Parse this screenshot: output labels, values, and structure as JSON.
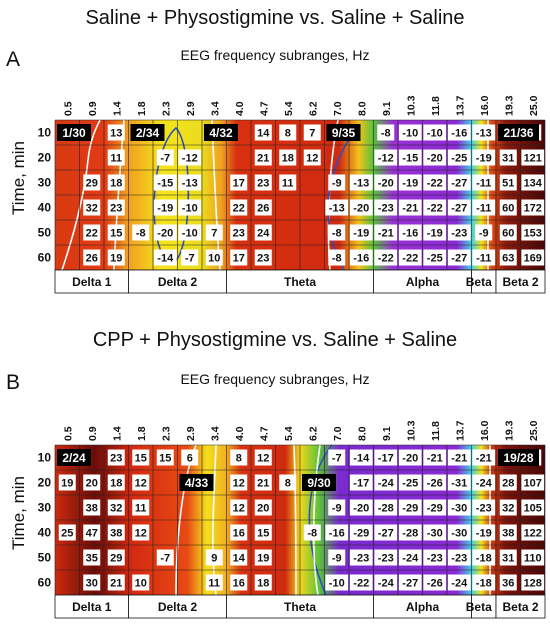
{
  "chart_data": [
    {
      "type": "heatmap",
      "panel_letter": "A",
      "title": "Saline + Physostigmine vs. Saline + Saline",
      "subtitle": "EEG frequency subranges, Hz",
      "ylabel": "Time, min",
      "x": [
        "0.5",
        "0.9",
        "1.4",
        "1.8",
        "2.3",
        "2.9",
        "3.4",
        "4.0",
        "4.7",
        "5.4",
        "6.2",
        "7.0",
        "8.0",
        "9.1",
        "10.3",
        "11.8",
        "13.7",
        "16.0",
        "19.3",
        "25.0"
      ],
      "y": [
        "10",
        "20",
        "30",
        "40",
        "50",
        "60"
      ],
      "bands": [
        {
          "label": "Delta 1",
          "from": 0,
          "to": 3
        },
        {
          "label": "Delta 2",
          "from": 3,
          "to": 7
        },
        {
          "label": "Theta",
          "from": 7,
          "to": 13
        },
        {
          "label": "Alpha",
          "from": 13,
          "to": 17
        },
        {
          "label": "Beta 1",
          "from": 17,
          "to": 18
        },
        {
          "label": "Beta 2",
          "from": 18,
          "to": 20
        }
      ],
      "values": [
        [
          "",
          "",
          "13",
          "",
          "",
          "",
          "",
          "",
          "14",
          "8",
          "7",
          "",
          "",
          "-8",
          "-10",
          "-10",
          "-16",
          "-13",
          "13",
          "44"
        ],
        [
          "",
          "",
          "11",
          "",
          "-7",
          "-12",
          "",
          "",
          "21",
          "18",
          "12",
          "",
          "",
          "-12",
          "-15",
          "-20",
          "-25",
          "-19",
          "31",
          "121"
        ],
        [
          "",
          "29",
          "18",
          "",
          "-15",
          "-13",
          "",
          "17",
          "23",
          "11",
          "",
          "-9",
          "-13",
          "-20",
          "-19",
          "-22",
          "-27",
          "-11",
          "51",
          "134"
        ],
        [
          "",
          "32",
          "23",
          "",
          "-19",
          "-10",
          "",
          "22",
          "26",
          "",
          "",
          "-13",
          "-20",
          "-23",
          "-21",
          "-22",
          "-27",
          "-11",
          "60",
          "172"
        ],
        [
          "",
          "22",
          "15",
          "-8",
          "-20",
          "-10",
          "7",
          "23",
          "24",
          "",
          "",
          "-8",
          "-19",
          "-21",
          "-16",
          "-19",
          "-23",
          "-9",
          "60",
          "153"
        ],
        [
          "",
          "26",
          "19",
          "",
          "-14",
          "-7",
          "10",
          "17",
          "23",
          "",
          "",
          "-8",
          "-16",
          "-22",
          "-22",
          "-25",
          "-27",
          "-11",
          "63",
          "169"
        ]
      ],
      "counts": [
        {
          "text": "1/30",
          "row": 0,
          "col": 0
        },
        {
          "text": "2/34",
          "row": 0,
          "col": 3
        },
        {
          "text": "4/32",
          "row": 0,
          "col": 6
        },
        {
          "text": "9/35",
          "row": 0,
          "col": 11
        },
        {
          "text": "21/36",
          "row": 0,
          "col": 18
        }
      ],
      "colors": {
        "hot": "#5a0a0a",
        "red": "#d42a10",
        "orange": "#f28a18",
        "yellow": "#f2e21a",
        "green": "#4fbf3a",
        "cyan": "#44d8e8",
        "blue": "#3a5bd6",
        "violet": "#7a2ad0",
        "purple": "#9b2fd8"
      }
    },
    {
      "type": "heatmap",
      "panel_letter": "B",
      "title": "CPP + Physostigmine vs. Saline + Saline",
      "subtitle": "EEG frequency subranges, Hz",
      "ylabel": "Time, min",
      "x": [
        "0.5",
        "0.9",
        "1.4",
        "1.8",
        "2.3",
        "2.9",
        "3.4",
        "4.0",
        "4.7",
        "5.4",
        "6.2",
        "7.0",
        "8.0",
        "9.1",
        "10.3",
        "11.8",
        "13.7",
        "16.0",
        "19.3",
        "25.0"
      ],
      "y": [
        "10",
        "20",
        "30",
        "40",
        "50",
        "60"
      ],
      "bands": [
        {
          "label": "Delta 1",
          "from": 0,
          "to": 3
        },
        {
          "label": "Delta 2",
          "from": 3,
          "to": 7
        },
        {
          "label": "Theta",
          "from": 7,
          "to": 13
        },
        {
          "label": "Alpha",
          "from": 13,
          "to": 17
        },
        {
          "label": "Beta 1",
          "from": 17,
          "to": 18
        },
        {
          "label": "Beta 2",
          "from": 18,
          "to": 20
        }
      ],
      "values": [
        [
          "",
          "",
          "23",
          "15",
          "15",
          "6",
          "",
          "8",
          "12",
          "",
          "",
          "-7",
          "-14",
          "-17",
          "-20",
          "-21",
          "-21",
          "-21",
          "",
          "37"
        ],
        [
          "19",
          "20",
          "18",
          "12",
          "",
          "",
          "",
          "12",
          "21",
          "8",
          "",
          "",
          "-17",
          "-24",
          "-25",
          "-26",
          "-31",
          "-24",
          "28",
          "107"
        ],
        [
          "",
          "38",
          "32",
          "11",
          "",
          "",
          "",
          "12",
          "20",
          "",
          "",
          "-9",
          "-20",
          "-28",
          "-29",
          "-29",
          "-30",
          "-23",
          "32",
          "105"
        ],
        [
          "25",
          "47",
          "38",
          "12",
          "",
          "",
          "",
          "16",
          "15",
          "",
          "-8",
          "-16",
          "-29",
          "-27",
          "-28",
          "-30",
          "-30",
          "-19",
          "38",
          "122"
        ],
        [
          "",
          "35",
          "29",
          "",
          "-7",
          "",
          "9",
          "14",
          "19",
          "",
          "",
          "-9",
          "-23",
          "-23",
          "-24",
          "-23",
          "-23",
          "-18",
          "31",
          "110"
        ],
        [
          "",
          "30",
          "21",
          "10",
          "",
          "",
          "11",
          "16",
          "18",
          "",
          "",
          "-10",
          "-22",
          "-24",
          "-27",
          "-26",
          "-24",
          "-18",
          "36",
          "128"
        ]
      ],
      "counts": [
        {
          "text": "2/24",
          "row": 0,
          "col": 0
        },
        {
          "text": "4/33",
          "row": 1,
          "col": 5
        },
        {
          "text": "9/30",
          "row": 1,
          "col": 10
        },
        {
          "text": "19/28",
          "row": 0,
          "col": 18
        }
      ],
      "colors": {
        "hot": "#5a0a0a",
        "red": "#d42a10",
        "orange": "#f28a18",
        "yellow": "#f2e21a",
        "green": "#4fbf3a",
        "cyan": "#44d8e8",
        "blue": "#3a5bd6",
        "violet": "#7a2ad0",
        "purple": "#9b2fd8"
      }
    }
  ]
}
